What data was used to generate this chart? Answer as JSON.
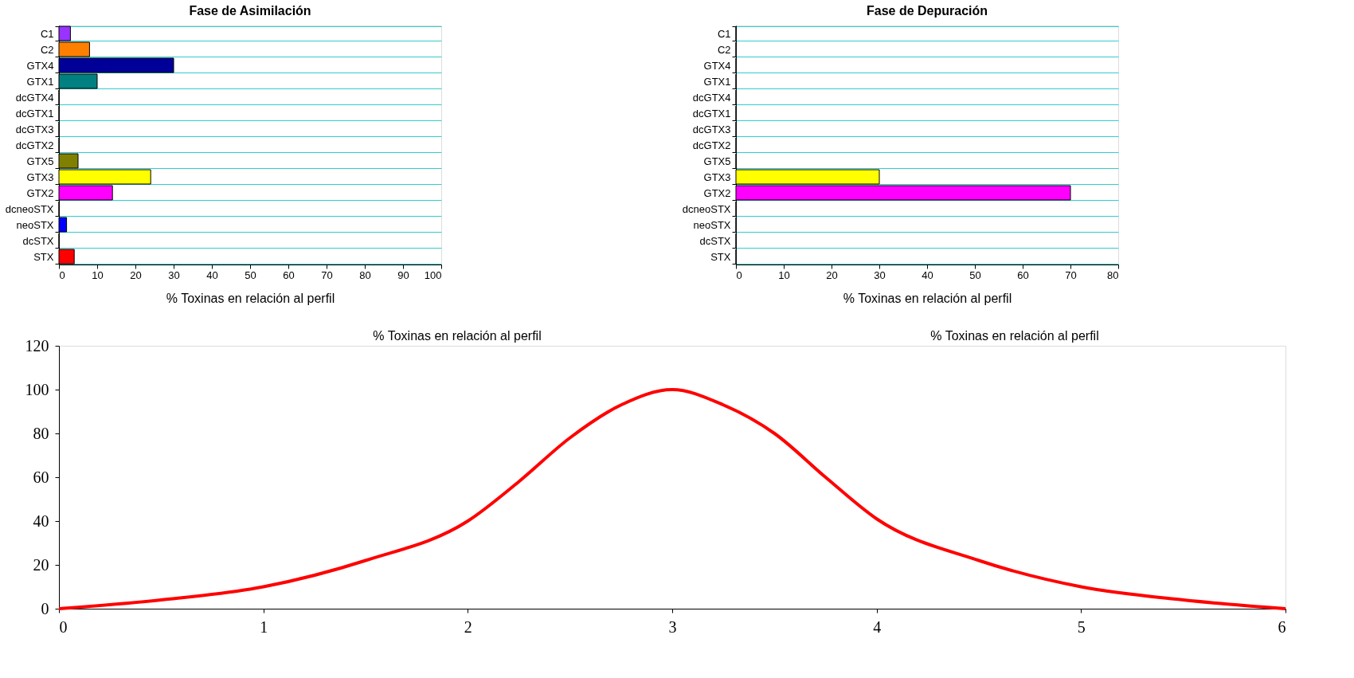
{
  "chart_data": [
    {
      "type": "line",
      "x": [
        0,
        0.5,
        1,
        1.5,
        2,
        2.25,
        2.5,
        2.75,
        3,
        3.25,
        3.5,
        3.75,
        4,
        4.5,
        5,
        5.5,
        6
      ],
      "series": [
        {
          "color": "#ff0000",
          "values": [
            0,
            4,
            10,
            22,
            40,
            58,
            78,
            93,
            100,
            93,
            80,
            60,
            41,
            22,
            10,
            4,
            0
          ]
        }
      ],
      "xlim": [
        0,
        6
      ],
      "xticks": [
        0,
        1,
        2,
        3,
        4,
        5,
        6
      ],
      "ylim": [
        0,
        120
      ],
      "yticks": [
        0,
        20,
        40,
        60,
        80,
        100,
        120
      ],
      "grid": false,
      "marker": "none",
      "line_style": "solid",
      "annotations": [
        "% Toxinas en  relación al perfil",
        "% Toxinas en  relación al perfil"
      ]
    },
    {
      "type": "bar",
      "orientation": "horizontal",
      "title": "Fase de Asimilación",
      "xlabel": "% Toxinas en  relación al perfil",
      "categories": [
        "C1",
        "C2",
        "GTX4",
        "GTX1",
        "dcGTX4",
        "dcGTX1",
        "dcGTX3",
        "dcGTX2",
        "GTX5",
        "GTX3",
        "GTX2",
        "dcneoSTX",
        "neoSTX",
        "dcSTX",
        "STX"
      ],
      "values": [
        3,
        8,
        30,
        10,
        0,
        0,
        0,
        0,
        5,
        24,
        14,
        0,
        2,
        0,
        4
      ],
      "colors": [
        "#9933ff",
        "#ff8000",
        "#000099",
        "#008080",
        "#000000",
        "#000000",
        "#000000",
        "#000000",
        "#808000",
        "#ffff00",
        "#ff00ff",
        "#000000",
        "#0000ff",
        "#000000",
        "#ff0000"
      ],
      "xlim": [
        0,
        100
      ],
      "xticks": [
        0,
        10,
        20,
        30,
        40,
        50,
        60,
        70,
        80,
        90,
        100
      ],
      "grid": "y"
    },
    {
      "type": "bar",
      "orientation": "horizontal",
      "title": "Fase de Depuración",
      "xlabel": "% Toxinas en  relación al perfil",
      "categories": [
        "C1",
        "C2",
        "GTX4",
        "GTX1",
        "dcGTX4",
        "dcGTX1",
        "dcGTX3",
        "dcGTX2",
        "GTX5",
        "GTX3",
        "GTX2",
        "dcneoSTX",
        "neoSTX",
        "dcSTX",
        "STX"
      ],
      "values": [
        0,
        0,
        0,
        0,
        0,
        0,
        0,
        0,
        0,
        30,
        70,
        0,
        0,
        0,
        0
      ],
      "colors": [
        "#000000",
        "#000000",
        "#000000",
        "#000000",
        "#000000",
        "#000000",
        "#000000",
        "#000000",
        "#000000",
        "#ffff00",
        "#ff00ff",
        "#000000",
        "#000000",
        "#000000",
        "#000000"
      ],
      "xlim": [
        0,
        80
      ],
      "xticks": [
        0,
        10,
        20,
        30,
        40,
        50,
        60,
        70,
        80
      ],
      "grid": "y"
    }
  ]
}
